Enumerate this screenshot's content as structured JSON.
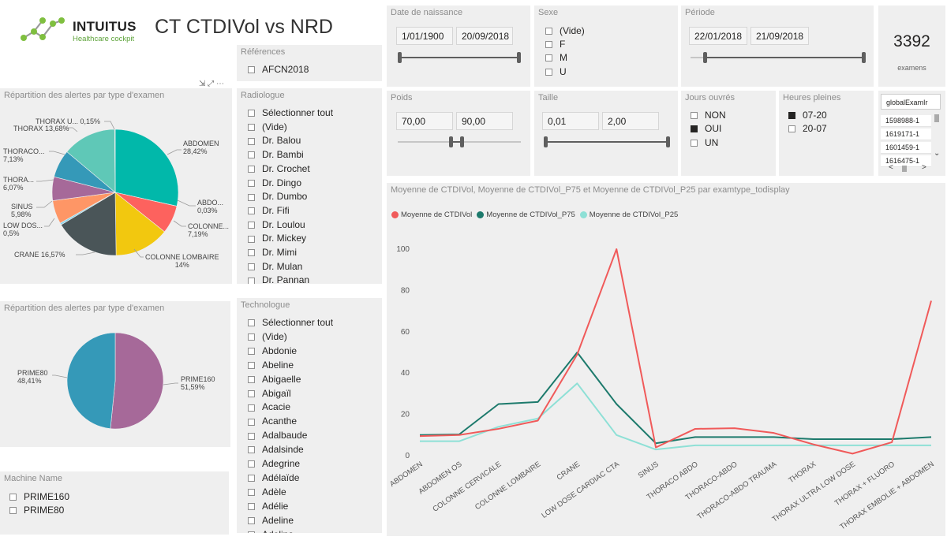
{
  "header": {
    "brand": "INTUITUS",
    "brand_sub": "Healthcare cockpit",
    "report_title": "CT CTDIVol vs NRD"
  },
  "references": {
    "title": "Références",
    "items": [
      {
        "label": "AFCN2018",
        "checked": false
      }
    ]
  },
  "radiologue": {
    "title": "Radiologue",
    "items": [
      {
        "label": "Sélectionner tout",
        "checked": false
      },
      {
        "label": "(Vide)",
        "checked": false
      },
      {
        "label": "Dr. Balou",
        "checked": false
      },
      {
        "label": "Dr. Bambi",
        "checked": false
      },
      {
        "label": "Dr. Crochet",
        "checked": false
      },
      {
        "label": "Dr. Dingo",
        "checked": false
      },
      {
        "label": "Dr. Dumbo",
        "checked": false
      },
      {
        "label": "Dr. Fifi",
        "checked": false
      },
      {
        "label": "Dr. Loulou",
        "checked": false
      },
      {
        "label": "Dr. Mickey",
        "checked": false
      },
      {
        "label": "Dr. Mimi",
        "checked": false
      },
      {
        "label": "Dr. Mulan",
        "checked": false
      },
      {
        "label": "Dr. Pannan",
        "checked": false
      }
    ]
  },
  "technologue": {
    "title": "Technologue",
    "items": [
      {
        "label": "Sélectionner tout",
        "checked": false
      },
      {
        "label": "(Vide)",
        "checked": false
      },
      {
        "label": "Abdonie",
        "checked": false
      },
      {
        "label": "Abeline",
        "checked": false
      },
      {
        "label": "Abigaelle",
        "checked": false
      },
      {
        "label": "Abigaïl",
        "checked": false
      },
      {
        "label": "Acacie",
        "checked": false
      },
      {
        "label": "Acanthe",
        "checked": false
      },
      {
        "label": "Adalbaude",
        "checked": false
      },
      {
        "label": "Adalsinde",
        "checked": false
      },
      {
        "label": "Adegrine",
        "checked": false
      },
      {
        "label": "Adélaïde",
        "checked": false
      },
      {
        "label": "Adèle",
        "checked": false
      },
      {
        "label": "Adélie",
        "checked": false
      },
      {
        "label": "Adeline",
        "checked": false
      },
      {
        "label": "Adelina",
        "checked": false
      }
    ]
  },
  "machine": {
    "title": "Machine Name",
    "items": [
      {
        "label": "PRIME160",
        "checked": false
      },
      {
        "label": "PRIME80",
        "checked": false
      }
    ]
  },
  "date_naissance": {
    "title": "Date de naissance",
    "from": "1/01/1900",
    "to": "20/09/2018",
    "selected_fraction": [
      0.0,
      1.0
    ]
  },
  "sexe": {
    "title": "Sexe",
    "items": [
      {
        "label": "(Vide)",
        "checked": false
      },
      {
        "label": "F",
        "checked": false
      },
      {
        "label": "M",
        "checked": false
      },
      {
        "label": "U",
        "checked": false
      }
    ]
  },
  "periode": {
    "title": "Période",
    "from": "22/01/2018",
    "to": "21/09/2018",
    "selected_fraction": [
      0.08,
      1.0
    ]
  },
  "card": {
    "value": "3392",
    "label": "examens"
  },
  "poids": {
    "title": "Poids",
    "from": "70,00",
    "to": "90,00",
    "selected_fraction": [
      0.43,
      0.52
    ]
  },
  "taille": {
    "title": "Taille",
    "from": "0,01",
    "to": "2,00",
    "selected_fraction": [
      0.0,
      1.0
    ]
  },
  "jours": {
    "title": "Jours ouvrés",
    "items": [
      {
        "label": "NON",
        "checked": false
      },
      {
        "label": "OUI",
        "checked": true
      },
      {
        "label": "UN",
        "checked": false
      }
    ]
  },
  "heures": {
    "title": "Heures pleines",
    "items": [
      {
        "label": "07-20",
        "checked": true
      },
      {
        "label": "20-07",
        "checked": false
      }
    ]
  },
  "global_exam": {
    "header": "globalExamIr",
    "items": [
      "1598988-1",
      "1619171-1",
      "1601459-1",
      "1616475-1"
    ],
    "nav_left": "<",
    "nav_right": ">",
    "scroll_down": "⌄"
  },
  "pie1_title": "Répartition des alertes par type d'examen",
  "pie2_title": "Répartition des alertes par type d'examen",
  "line_title": "Moyenne de CTDIVol, Moyenne de CTDIVol_P75 et Moyenne de CTDIVol_P25 par examtype_todisplay",
  "colors": {
    "teal": "#01b8aa",
    "red": "#fd625e",
    "yellow": "#f2c80f",
    "dark": "#374649",
    "orange": "#fe9666",
    "purple": "#a66999",
    "blue": "#3599b8",
    "aqua": "#5fc8c1",
    "green": "#62a845",
    "line_red": "#f05a5a",
    "line_green": "#1d7a6c",
    "line_aqua": "#8ee0d6"
  },
  "chart_data": [
    {
      "type": "pie",
      "title": "Répartition des alertes par type d'examen",
      "slices": [
        {
          "label": "ABDOMEN",
          "value": 28.42,
          "display": "28,42%",
          "color": "#01b8aa"
        },
        {
          "label": "ABDO...",
          "value": 0.03,
          "display": "0,03%",
          "color": "#374649"
        },
        {
          "label": "COLONNE...",
          "value": 7.19,
          "display": "7,19%",
          "color": "#fd625e"
        },
        {
          "label": "COLONNE LOMBAIRE",
          "value": 14,
          "display": "14%",
          "color": "#f2c80f"
        },
        {
          "label": "CRANE",
          "value": 16.57,
          "display": "16,57%",
          "color": "#4a5558"
        },
        {
          "label": "LOW DOS...",
          "value": 0.5,
          "display": "0,5%",
          "color": "#8ad4eb"
        },
        {
          "label": "SINUS",
          "value": 5.98,
          "display": "5,98%",
          "color": "#fe9666"
        },
        {
          "label": "THORA...",
          "value": 6.07,
          "display": "6,07%",
          "color": "#a66999"
        },
        {
          "label": "THORACO...",
          "value": 7.13,
          "display": "7,13%",
          "color": "#3599b8"
        },
        {
          "label": "THORAX",
          "value": 13.68,
          "display": "13,68%",
          "color": "#5fc8b7"
        },
        {
          "label": "THORAX U...",
          "value": 0.15,
          "display": "0,15%",
          "color": "#c5c5c5"
        }
      ]
    },
    {
      "type": "pie",
      "title": "Répartition des alertes par type d'examen",
      "slices": [
        {
          "label": "PRIME160",
          "value": 51.59,
          "display": "51,59%",
          "color": "#a66999"
        },
        {
          "label": "PRIME80",
          "value": 48.41,
          "display": "48,41%",
          "color": "#3599b8"
        }
      ]
    },
    {
      "type": "line",
      "title": "Moyenne de CTDIVol, Moyenne de CTDIVol_P75 et Moyenne de CTDIVol_P25 par examtype_todisplay",
      "categories": [
        "ABDOMEN",
        "ABDOMEN OS",
        "COLONNE CERVICALE",
        "COLONNE LOMBAIRE",
        "CRANE",
        "LOW DOSE CARDIAC CTA",
        "SINUS",
        "THORACO ABDO",
        "THORACO-ABDO",
        "THORACO-ABDO TRAUMA",
        "THORAX",
        "THORAX ULTRA LOW DOSE",
        "THORAX + FLUORO",
        "THORAX EMBOLIE + ABDOMEN"
      ],
      "ylim": [
        0,
        100
      ],
      "yticks": [
        0,
        20,
        40,
        60,
        80,
        100
      ],
      "legend_position": "top-left",
      "grid": false,
      "series": [
        {
          "name": "Moyenne de CTDIVol",
          "color": "#f05a5a",
          "values": [
            9.5,
            10,
            13,
            17,
            49,
            100,
            4,
            13,
            13.3,
            11,
            5.5,
            1,
            6.5,
            75
          ]
        },
        {
          "name": "Moyenne de CTDIVol_P75",
          "color": "#1d7a6c",
          "values": [
            10,
            10.3,
            25,
            26,
            50,
            25,
            6,
            9,
            9,
            9,
            8,
            8,
            8,
            9
          ]
        },
        {
          "name": "Moyenne de CTDIVol_P25",
          "color": "#8ee0d6",
          "values": [
            7,
            7,
            14,
            18,
            35,
            10,
            3,
            5,
            5,
            5,
            5,
            5,
            5,
            5
          ]
        }
      ]
    }
  ]
}
